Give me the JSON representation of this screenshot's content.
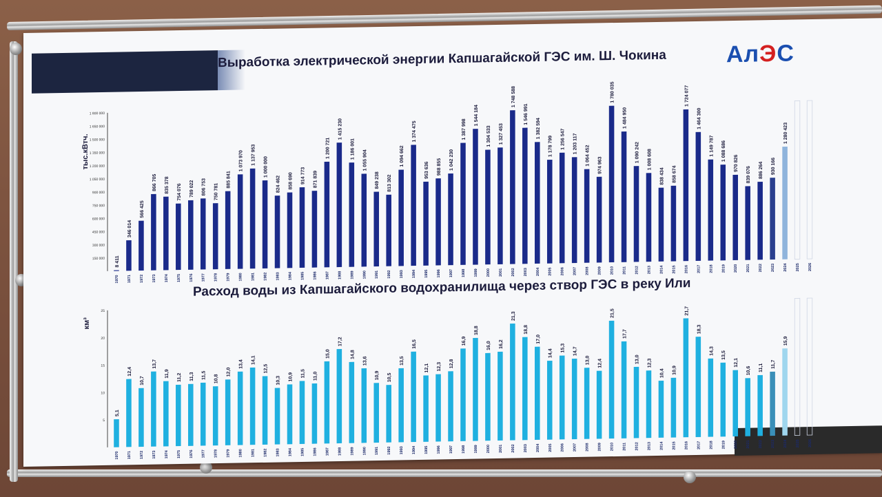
{
  "titles": {
    "energy": "Выработка электрической энергии Капшагайской ГЭС им. Ш. Чокина",
    "water": "Расход воды из Капшагайского водохранилища через створ ГЭС в реку Или"
  },
  "logo": {
    "text_a": "Ал",
    "text_e": "Э",
    "text_c": "С"
  },
  "axes": {
    "energy_unit": "тыс.кВтч.",
    "water_unit": "км³"
  },
  "colors": {
    "dark_bar": "#1a2a8a",
    "light_bar": "#1fb0e0",
    "forecast": "#8fb4dc"
  },
  "chart_data": [
    {
      "type": "bar",
      "ylabel": "тыс.кВтч.",
      "ylim": [
        0,
        1800000
      ],
      "yticks": [
        "150 000",
        "300 000",
        "450 000",
        "600 000",
        "750 000",
        "900 000",
        "1 050 000",
        "1 200 000",
        "1 350 000",
        "1 500 000",
        "1 650 000",
        "1 800 000"
      ],
      "categories": [
        "1970",
        "1971",
        "1972",
        "1973",
        "1974",
        "1975",
        "1976",
        "1977",
        "1978",
        "1979",
        "1980",
        "1981",
        "1982",
        "1983",
        "1984",
        "1985",
        "1986",
        "1987",
        "1988",
        "1989",
        "1990",
        "1991",
        "1992",
        "1993",
        "1994",
        "1995",
        "1996",
        "1997",
        "1998",
        "1999",
        "2000",
        "2001",
        "2002",
        "2003",
        "2004",
        "2005",
        "2006",
        "2007",
        "2008",
        "2009",
        "2010",
        "2011",
        "2012",
        "2013",
        "2014",
        "2015",
        "2016",
        "2017",
        "2018",
        "2019",
        "2020",
        "2021",
        "2022",
        "2023",
        "2024",
        "2025",
        "2026"
      ],
      "values": [
        8411,
        346014,
        566425,
        866705,
        835378,
        754076,
        789022,
        806753,
        750781,
        885841,
        1073970,
        1137953,
        1000000,
        824462,
        858690,
        914773,
        871839,
        1200721,
        1415230,
        1186001,
        1055904,
        849238,
        813302,
        1094662,
        1374475,
        953636,
        988855,
        1042230,
        1387998,
        1544184,
        1304533,
        1327453,
        1748588,
        1546991,
        1382594,
        1178799,
        1256547,
        1203117,
        1064452,
        974963,
        1780035,
        1484950,
        1090242,
        1008608,
        838434,
        858674,
        1724077,
        1464300,
        1149787,
        1088686,
        970826,
        839076,
        886264,
        930166,
        1280423,
        null,
        null
      ],
      "labels": [
        "8 411",
        "346 014",
        "566 425",
        "866 705",
        "835 378",
        "754 076",
        "789 022",
        "806 753",
        "750 781",
        "885 841",
        "1 073 970",
        "1 137 953",
        "1 000 000",
        "824 462",
        "858 690",
        "914 773",
        "871 839",
        "1 200 721",
        "1 415 230",
        "1 186 001",
        "1 055 904",
        "849 238",
        "813 302",
        "1 094 662",
        "1 374 475",
        "953 636",
        "988 855",
        "1 042 230",
        "1 387 998",
        "1 544 184",
        "1 304 533",
        "1 327 453",
        "1 748 588",
        "1 546 991",
        "1 382 594",
        "1 178 799",
        "1 256 547",
        "1 203 117",
        "1 064 452",
        "974 963",
        "1 780 035",
        "1 484 950",
        "1 090 242",
        "1 008 608",
        "838 434",
        "858 674",
        "1 724 077",
        "1 464 300",
        "1 149 787",
        "1 088 686",
        "970 826",
        "839 076",
        "886 264",
        "930 166",
        "1 280 423",
        "",
        ""
      ]
    },
    {
      "type": "bar",
      "ylabel": "км³",
      "ylim": [
        0,
        25
      ],
      "yticks": [
        "5",
        "10",
        "15",
        "20",
        "25"
      ],
      "categories": [
        "1970",
        "1971",
        "1972",
        "1973",
        "1974",
        "1975",
        "1976",
        "1977",
        "1978",
        "1979",
        "1980",
        "1981",
        "1982",
        "1983",
        "1984",
        "1985",
        "1986",
        "1987",
        "1988",
        "1989",
        "1990",
        "1991",
        "1992",
        "1993",
        "1994",
        "1995",
        "1996",
        "1997",
        "1998",
        "1999",
        "2000",
        "2001",
        "2002",
        "2003",
        "2004",
        "2005",
        "2006",
        "2007",
        "2008",
        "2009",
        "2010",
        "2011",
        "2012",
        "2013",
        "2014",
        "2015",
        "2016",
        "2017",
        "2018",
        "2019",
        "2020",
        "2021",
        "2022",
        "2023",
        "2024",
        "2025",
        "2026"
      ],
      "values": [
        5.1,
        12.4,
        10.7,
        13.7,
        11.9,
        11.2,
        11.3,
        11.5,
        10.8,
        12.0,
        13.4,
        14.1,
        12.5,
        10.3,
        10.9,
        11.5,
        11.0,
        15.0,
        17.2,
        14.8,
        13.6,
        10.9,
        10.5,
        13.5,
        16.5,
        12.1,
        12.3,
        12.8,
        16.9,
        18.8,
        16.0,
        16.2,
        21.3,
        18.8,
        17.0,
        14.4,
        15.3,
        14.7,
        13.0,
        12.4,
        21.5,
        17.7,
        13.0,
        12.3,
        10.4,
        10.9,
        21.7,
        18.3,
        14.3,
        13.5,
        12.1,
        10.6,
        11.1,
        11.7,
        15.9,
        null,
        null
      ],
      "labels": [
        "5,1",
        "12,4",
        "10,7",
        "13,7",
        "11,9",
        "11,2",
        "11,3",
        "11,5",
        "10,8",
        "12,0",
        "13,4",
        "14,1",
        "12,5",
        "10,3",
        "10,9",
        "11,5",
        "11,0",
        "15,0",
        "17,2",
        "14,8",
        "13,6",
        "10,9",
        "10,5",
        "13,5",
        "16,5",
        "12,1",
        "12,3",
        "12,8",
        "16,9",
        "18,8",
        "16,0",
        "16,2",
        "21,3",
        "18,8",
        "17,0",
        "14,4",
        "15,3",
        "14,7",
        "13,0",
        "12,4",
        "21,5",
        "17,7",
        "13,0",
        "12,3",
        "10,4",
        "10,9",
        "21,7",
        "18,3",
        "14,3",
        "13,5",
        "12,1",
        "10,6",
        "11,1",
        "11,7",
        "15,9",
        "",
        ""
      ]
    }
  ]
}
